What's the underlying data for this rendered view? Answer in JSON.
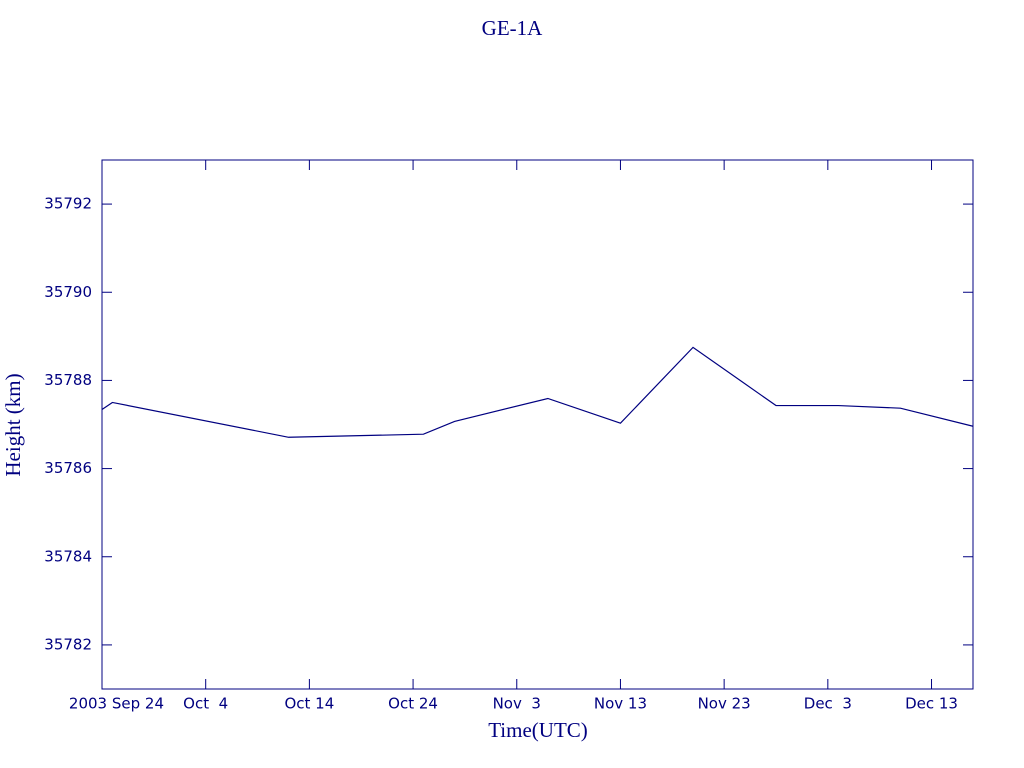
{
  "chart_data": {
    "type": "line",
    "title": "GE-1A",
    "xlabel": "Time(UTC)",
    "ylabel": "Height (km)",
    "color": "#000080",
    "x": [
      "2003-09-24",
      "2003-09-25",
      "2003-10-12",
      "2003-10-25",
      "2003-10-28",
      "2003-11-06",
      "2003-11-13",
      "2003-11-20",
      "2003-11-28",
      "2003-12-04",
      "2003-12-10",
      "2003-12-17"
    ],
    "values": [
      35787.34,
      35787.5,
      35786.71,
      35786.78,
      35787.07,
      35787.59,
      35787.03,
      35788.75,
      35787.43,
      35787.43,
      35787.37,
      35786.96
    ],
    "xlim": [
      "2003-09-24",
      "2003-12-17"
    ],
    "xticks": [
      {
        "value": "2003-09-24",
        "label": "2003 Sep 24"
      },
      {
        "value": "2003-10-04",
        "label": "Oct  4"
      },
      {
        "value": "2003-10-14",
        "label": "Oct 14"
      },
      {
        "value": "2003-10-24",
        "label": "Oct 24"
      },
      {
        "value": "2003-11-03",
        "label": "Nov  3"
      },
      {
        "value": "2003-11-13",
        "label": "Nov 13"
      },
      {
        "value": "2003-11-23",
        "label": "Nov 23"
      },
      {
        "value": "2003-12-03",
        "label": "Dec  3"
      },
      {
        "value": "2003-12-13",
        "label": "Dec 13"
      }
    ],
    "ylim": [
      35781,
      35793
    ],
    "yticks": [
      35782,
      35784,
      35786,
      35788,
      35790,
      35792
    ]
  }
}
